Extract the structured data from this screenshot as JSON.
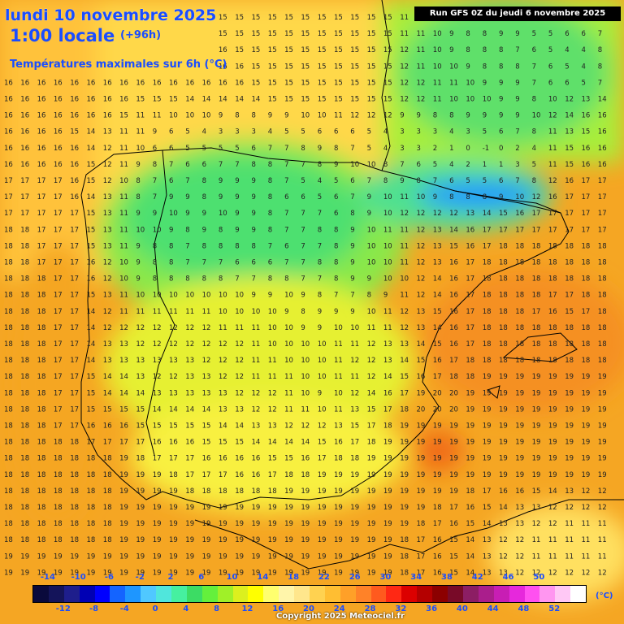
{
  "header": {
    "date_line": "lundi 10 novembre 2025",
    "time_line": "1:00 locale",
    "lead_time": "(+96h)",
    "variable_line": "Températures maximales sur 6h (°C)",
    "run_info": "Run GFS 0Z du jeudi 6 novembre 2025"
  },
  "legend": {
    "unit": "(°C)",
    "top_labels": [
      "-14",
      "-10",
      "-6",
      "-2",
      "2",
      "6",
      "10",
      "14",
      "18",
      "22",
      "26",
      "30",
      "34",
      "38",
      "42",
      "46",
      "50"
    ],
    "bottom_labels": [
      "-12",
      "-8",
      "-4",
      "0",
      "4",
      "8",
      "12",
      "16",
      "20",
      "24",
      "28",
      "32",
      "36",
      "40",
      "44",
      "48",
      "52"
    ],
    "colors": [
      "#0a0a3c",
      "#14145a",
      "#1e1e8c",
      "#0000b4",
      "#0000ff",
      "#1464ff",
      "#1e96ff",
      "#50c8ff",
      "#50e6dc",
      "#46f0a0",
      "#3cdc64",
      "#64f03c",
      "#a0f028",
      "#dcf01e",
      "#ffff00",
      "#ffff6e",
      "#fff5aa",
      "#ffe68c",
      "#ffd250",
      "#ffbe32",
      "#ffa028",
      "#ff8228",
      "#ff5a1e",
      "#ff2814",
      "#dc0000",
      "#b40000",
      "#8c0000",
      "#780a28",
      "#8c1e64",
      "#aa1e8c",
      "#c81eb4",
      "#e628dc",
      "#ff50f0",
      "#ff96f0",
      "#ffc8f5",
      "#ffffff"
    ]
  },
  "copyright": "Copyright 2025 Meteociel.fr",
  "colors": {
    "title": "#1a4dff",
    "land_cool": "#5ee06a",
    "land_mild": "#d8f03a",
    "warm": "#ffd44a",
    "sea": "#f5a020",
    "hot": "#f08018"
  },
  "grid_values": [
    "15 15 15 15 15 15 15 15 15 15 15 15 15 15 15 15 15 15 15 15 15 15 15 15 11 10 11 10 9 8 9 10 5 6 7 7 8",
    "15 15 15 15 15 15 15 15 15 15 15 15 15 15 15 15 15 15 15 15 15 15 15 15 11 11 10 9 8 8 9 9 5 5 6 6 7",
    "15 16 16 16 16 16 16 16 16 16 16 16 16 16 15 15 15 15 15 15 15 15 15 15 12 11 10 9 8 8 8 7 6 5 4 4 8",
    "16 16 16 16 16 16 16 16 16 16 16 16 16 16 16 15 15 15 15 15 15 15 15 15 12 11 10 10 9 8 8 8 7 6 5 4 8",
    "16 16 16 16 16 16 16 16 16 16 16 16 16 16 16 15 15 15 15 15 15 15 15 15 12 12 11 11 10 9 9 9 7 6 6 5 7",
    "16 16 16 16 16 16 16 16 15 15 15 14 14 14 14 14 15 15 15 15 15 15 15 15 12 12 11 10 10 10 9 9 8 10 12 13 14",
    "16 16 16 16 16 16 16 15 11 11 10 10 10 9 8 8 9 9 10 10 11 12 12 12 9 9 8 8 9 9 9 9 10 12 14 16 16",
    "16 16 16 16 15 14 13 11 11 9 6 5 4 3 3 3 4 5 5 6 6 6 5 4 3 3 3 4 3 5 6 7 8 11 13 15 16",
    "16 16 16 16 16 14 12 11 10 6 6 5 5 5 5 6 7 7 8 9 8 7 5 4 3 3 2 1 0 -1 0 2 4 11 15 16 16",
    "16 16 16 16 16 15 12 11 9 8 7 6 6 7 7 8 8 7 7 8 9 10 10 8 7 6 5 4 2 1 1 3 5 11 15 16 16",
    "17 17 17 17 16 15 12 10 8 7 6 7 8 9 9 9 8 7 5 4 5 6 7 8 9 8 7 6 5 5 6 7 8 12 16 17 17",
    "17 17 17 17 16 14 13 11 8 7 9 9 8 9 9 9 8 6 6 5 6 7 9 10 11 10 9 8 8 8 9 10 12 16 17 17 17",
    "17 17 17 17 17 15 13 11 9 9 10 9 9 10 9 9 8 7 7 7 6 8 9 10 12 12 12 12 13 14 15 16 17 17 17 17 17",
    "18 18 17 17 17 15 13 11 10 10 9 8 9 8 9 9 8 7 7 8 8 9 10 11 11 12 13 14 16 17 17 17 17 17 17 17 17",
    "18 18 17 17 17 15 13 11 9 8 8 7 8 8 8 8 7 6 7 7 8 9 10 10 11 12 13 15 16 17 18 18 18 18 18 18 18",
    "18 18 17 17 17 16 12 10 9 8 8 7 7 7 6 6 6 7 7 8 8 9 10 10 11 12 13 16 17 18 18 18 18 18 18 18 18",
    "18 18 18 17 17 16 12 10 9 8 8 8 8 8 7 7 8 8 7 7 8 9 9 10 10 12 14 16 17 18 18 18 18 18 18 18 18",
    "18 18 18 17 17 15 13 11 10 10 10 10 10 10 10 9 9 10 9 8 7 7 8 9 11 12 14 16 17 18 18 18 18 17 17 18 18",
    "18 18 18 17 17 14 12 11 11 11 11 11 11 10 10 10 10 9 8 9 9 9 10 11 12 13 15 16 17 18 18 18 17 16 15 17 18",
    "18 18 18 17 17 14 12 12 12 12 12 12 12 11 11 11 10 10 9 9 10 10 11 11 12 13 14 16 17 18 18 18 18 18 18 18 18",
    "18 18 18 17 17 14 13 13 12 12 12 12 12 12 12 11 10 10 10 10 11 11 12 13 13 14 15 16 17 18 18 18 18 18 18 18 18",
    "18 18 18 17 17 14 13 13 13 13 13 13 12 12 12 11 11 10 10 10 11 12 12 13 14 15 16 17 18 18 18 18 18 18 18 18 18",
    "18 18 18 17 17 15 14 14 13 12 12 13 13 12 12 11 11 11 10 10 11 11 12 14 15 16 17 18 18 19 19 19 19 19 19 19 19",
    "18 18 18 17 17 15 14 14 14 13 13 13 13 13 12 12 12 11 10 9 10 12 14 16 17 19 20 20 19 19 19 19 19 19 19 19 19",
    "18 18 18 17 17 15 15 15 15 14 14 14 14 13 13 12 12 11 11 10 11 13 15 17 18 20 20 20 19 19 19 19 19 19 19 19 19",
    "18 18 18 17 17 16 16 16 15 15 15 15 15 14 14 13 13 12 12 12 13 15 17 18 19 19 19 19 19 19 19 19 19 19 19 19 19",
    "18 18 18 18 18 17 17 17 17 16 16 16 15 15 15 14 14 14 14 15 16 17 18 19 19 19 19 19 19 19 19 19 19 19 19 19 19",
    "18 18 18 18 18 18 18 19 18 17 17 17 16 16 16 16 15 15 16 17 18 18 19 19 19 19 19 19 19 19 19 19 19 19 19 19 19",
    "18 18 18 18 18 18 18 19 19 19 18 17 17 17 16 16 17 18 18 19 19 19 19 19 19 19 19 19 19 19 19 19 19 19 19 19 19",
    "18 18 18 18 18 18 18 19 19 19 19 18 18 18 18 18 18 19 19 19 19 19 19 19 19 19 19 19 18 17 16 16 15 14 13 12 12",
    "18 18 18 18 18 18 18 19 19 19 19 19 19 19 19 19 19 19 19 19 19 19 19 19 19 19 18 17 16 15 14 13 13 12 12 12 12",
    "18 18 18 18 18 18 18 19 19 19 19 19 19 19 19 19 19 19 19 19 19 19 19 19 19 18 17 16 15 14 13 13 12 12 11 11 11",
    "18 18 18 18 18 18 18 19 19 19 19 19 19 19 19 19 19 19 19 19 19 19 19 19 18 17 16 15 14 13 12 12 11 11 11 11 11",
    "19 19 19 19 19 19 19 19 19 19 19 19 19 19 19 19 19 19 19 19 19 19 19 19 18 17 16 15 14 13 12 12 11 11 11 11 11",
    "19 19 19 19 19 19 19 19 19 19 19 19 19 19 19 19 19 19 19 19 19 19 19 19 18 17 16 15 14 13 13 12 12 12 12 12 12",
    "19 19 19 19 19 19 19 19 19 19 19 19 19 19 19 19 19 19 19 19 19 19 19 19 18 17 17 16 15 14 13 13 12 12 12 12 12"
  ]
}
